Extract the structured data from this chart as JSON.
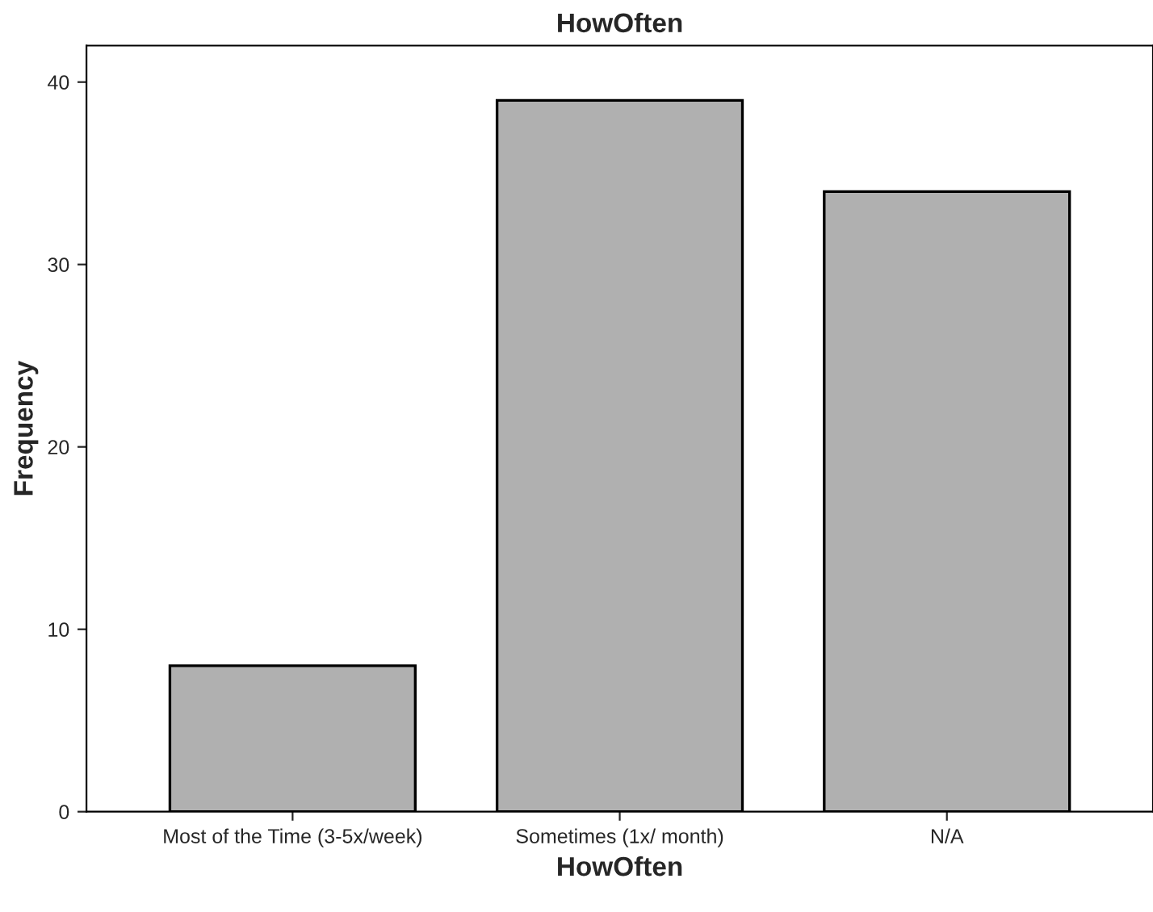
{
  "chart_data": {
    "type": "bar",
    "title": "HowOften",
    "xlabel": "HowOften",
    "ylabel": "Frequency",
    "categories": [
      "Most of the Time (3-5x/week)",
      "Sometimes (1x/ month)",
      "N/A"
    ],
    "values": [
      8,
      39,
      34
    ],
    "color": "#b0b0b0",
    "ylim": [
      0,
      42
    ],
    "yticks": [
      0,
      10,
      20,
      30,
      40
    ],
    "grid": false
  }
}
